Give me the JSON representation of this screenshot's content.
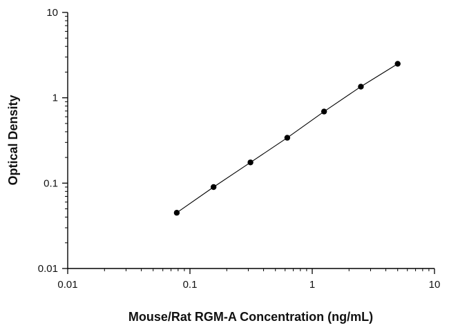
{
  "chart_data": {
    "type": "scatter",
    "xscale": "log",
    "yscale": "log",
    "xlabel": "Mouse/Rat RGM-A Concentration (ng/mL)",
    "ylabel": "Optical Density",
    "xlim": [
      0.01,
      10
    ],
    "ylim": [
      0.01,
      10
    ],
    "x_ticks": [
      "0.01",
      "0.1",
      "1",
      "10"
    ],
    "y_ticks": [
      "0.01",
      "0.1",
      "1",
      "10"
    ],
    "grid": false,
    "legend": "none",
    "series": [
      {
        "x": [
          0.078,
          0.156,
          0.3125,
          0.625,
          1.25,
          2.5,
          5
        ],
        "y": [
          0.045,
          0.09,
          0.175,
          0.34,
          0.69,
          1.35,
          2.5
        ],
        "marker": "circle",
        "line": "fit",
        "color": "#000000"
      }
    ]
  }
}
